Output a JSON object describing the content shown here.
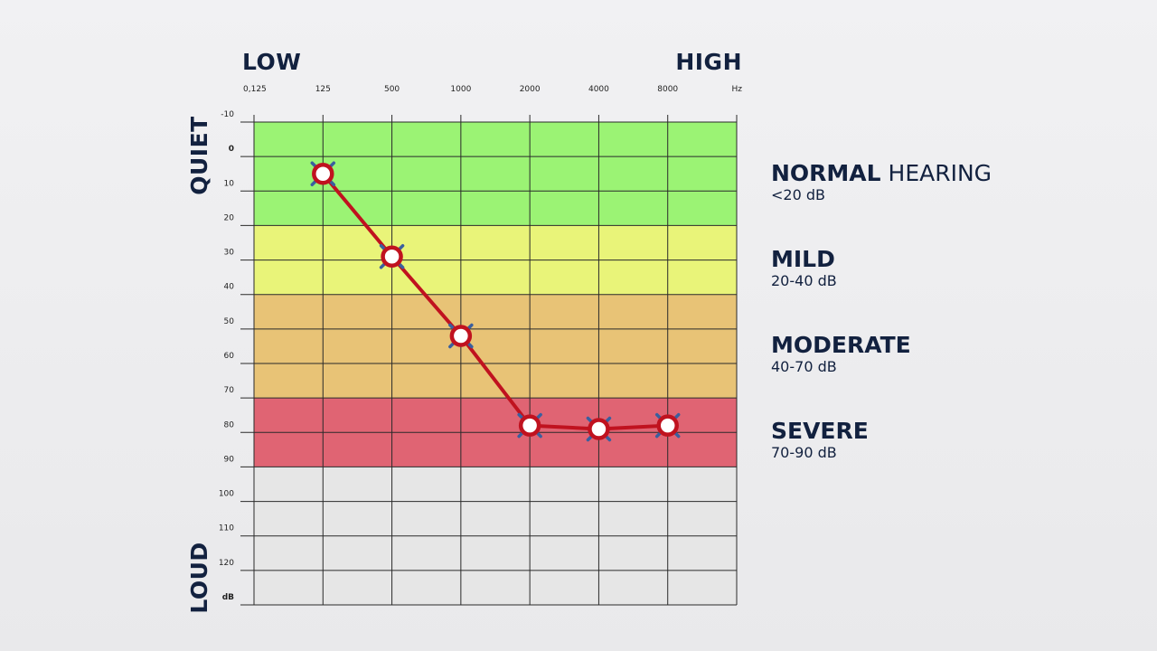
{
  "chart_data": {
    "type": "line",
    "top_left_label": "LOW",
    "top_right_label": "HIGH",
    "left_top_label": "QUIET",
    "left_bottom_label": "LOUD",
    "x_tick_labels": [
      "0,125",
      "125",
      "500",
      "1000",
      "2000",
      "4000",
      "8000",
      "Hz"
    ],
    "y_ticks": [
      -10,
      0,
      10,
      20,
      30,
      40,
      50,
      60,
      70,
      80,
      90,
      100,
      110,
      120
    ],
    "y_tick_labels": [
      "-10",
      "0",
      "10",
      "20",
      "30",
      "40",
      "50",
      "60",
      "70",
      "80",
      "90",
      "100",
      "110",
      "120",
      "dB"
    ],
    "ylim": [
      -10,
      130
    ],
    "y_inverted": true,
    "bands": [
      {
        "from": -10,
        "to": 20,
        "color": "#9bf374"
      },
      {
        "from": 20,
        "to": 40,
        "color": "#e9f479"
      },
      {
        "from": 40,
        "to": 70,
        "color": "#e8c376"
      },
      {
        "from": 70,
        "to": 90,
        "color": "#e06473"
      },
      {
        "from": 90,
        "to": 130,
        "color": "#e6e6e6"
      }
    ],
    "series": [
      {
        "x": [
          "125",
          "500",
          "1000",
          "2000",
          "4000",
          "8000"
        ],
        "y": [
          5,
          29,
          52,
          78,
          79,
          78
        ],
        "line_color": "#c0121f",
        "marker_color": "#c0121f",
        "cross_color": "#3a5f9e"
      }
    ],
    "grid": true
  },
  "legend": [
    {
      "bold": "NORMAL",
      "light": " HEARING",
      "range": "<20 dB"
    },
    {
      "bold": "MILD",
      "light": "",
      "range": "20-40 dB"
    },
    {
      "bold": "MODERATE",
      "light": "",
      "range": "40-70 dB"
    },
    {
      "bold": "SEVERE",
      "light": "",
      "range": "70-90 dB"
    }
  ]
}
